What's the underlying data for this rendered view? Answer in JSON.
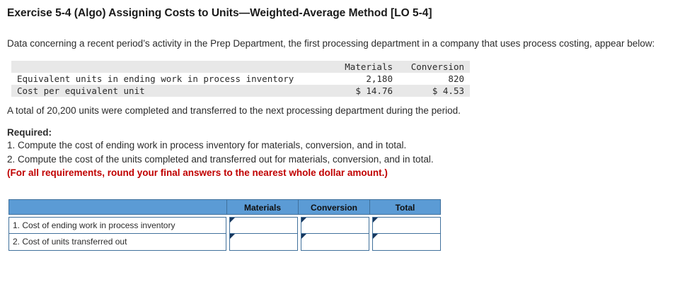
{
  "title": "Exercise 5-4 (Algo) Assigning Costs to Units—Weighted-Average Method [LO 5-4]",
  "intro": "Data concerning a recent period’s activity in the Prep Department, the first processing department in a company that uses process costing, appear below:",
  "data_table": {
    "col_headers": [
      "Materials",
      "Conversion"
    ],
    "rows": [
      {
        "label": "Equivalent units in ending work in process inventory",
        "materials": "2,180",
        "conversion": "820"
      },
      {
        "label": "Cost per equivalent unit",
        "materials": "$ 14.76",
        "conversion": "$ 4.53"
      }
    ]
  },
  "note": "A total of 20,200 units were completed and transferred to the next processing department during the period.",
  "required": {
    "heading": "Required:",
    "items": [
      "1. Compute the cost of ending work in process inventory for materials, conversion, and in total.",
      "2. Compute the cost of the units completed and transferred out for materials, conversion, and in total.",
      "(For all requirements, round your final answers to the nearest whole dollar amount.)"
    ]
  },
  "answer_table": {
    "headers": [
      "Materials",
      "Conversion",
      "Total"
    ],
    "rows": [
      {
        "label": "1. Cost of ending work in process inventory",
        "materials": "",
        "conversion": "",
        "total": ""
      },
      {
        "label": "2. Cost of units transferred out",
        "materials": "",
        "conversion": "",
        "total": ""
      }
    ]
  },
  "colors": {
    "header_blue": "#5b9bd5",
    "table_border_blue": "#41719c",
    "warning_red": "#c00000",
    "band_gray": "#e8e8e8"
  }
}
